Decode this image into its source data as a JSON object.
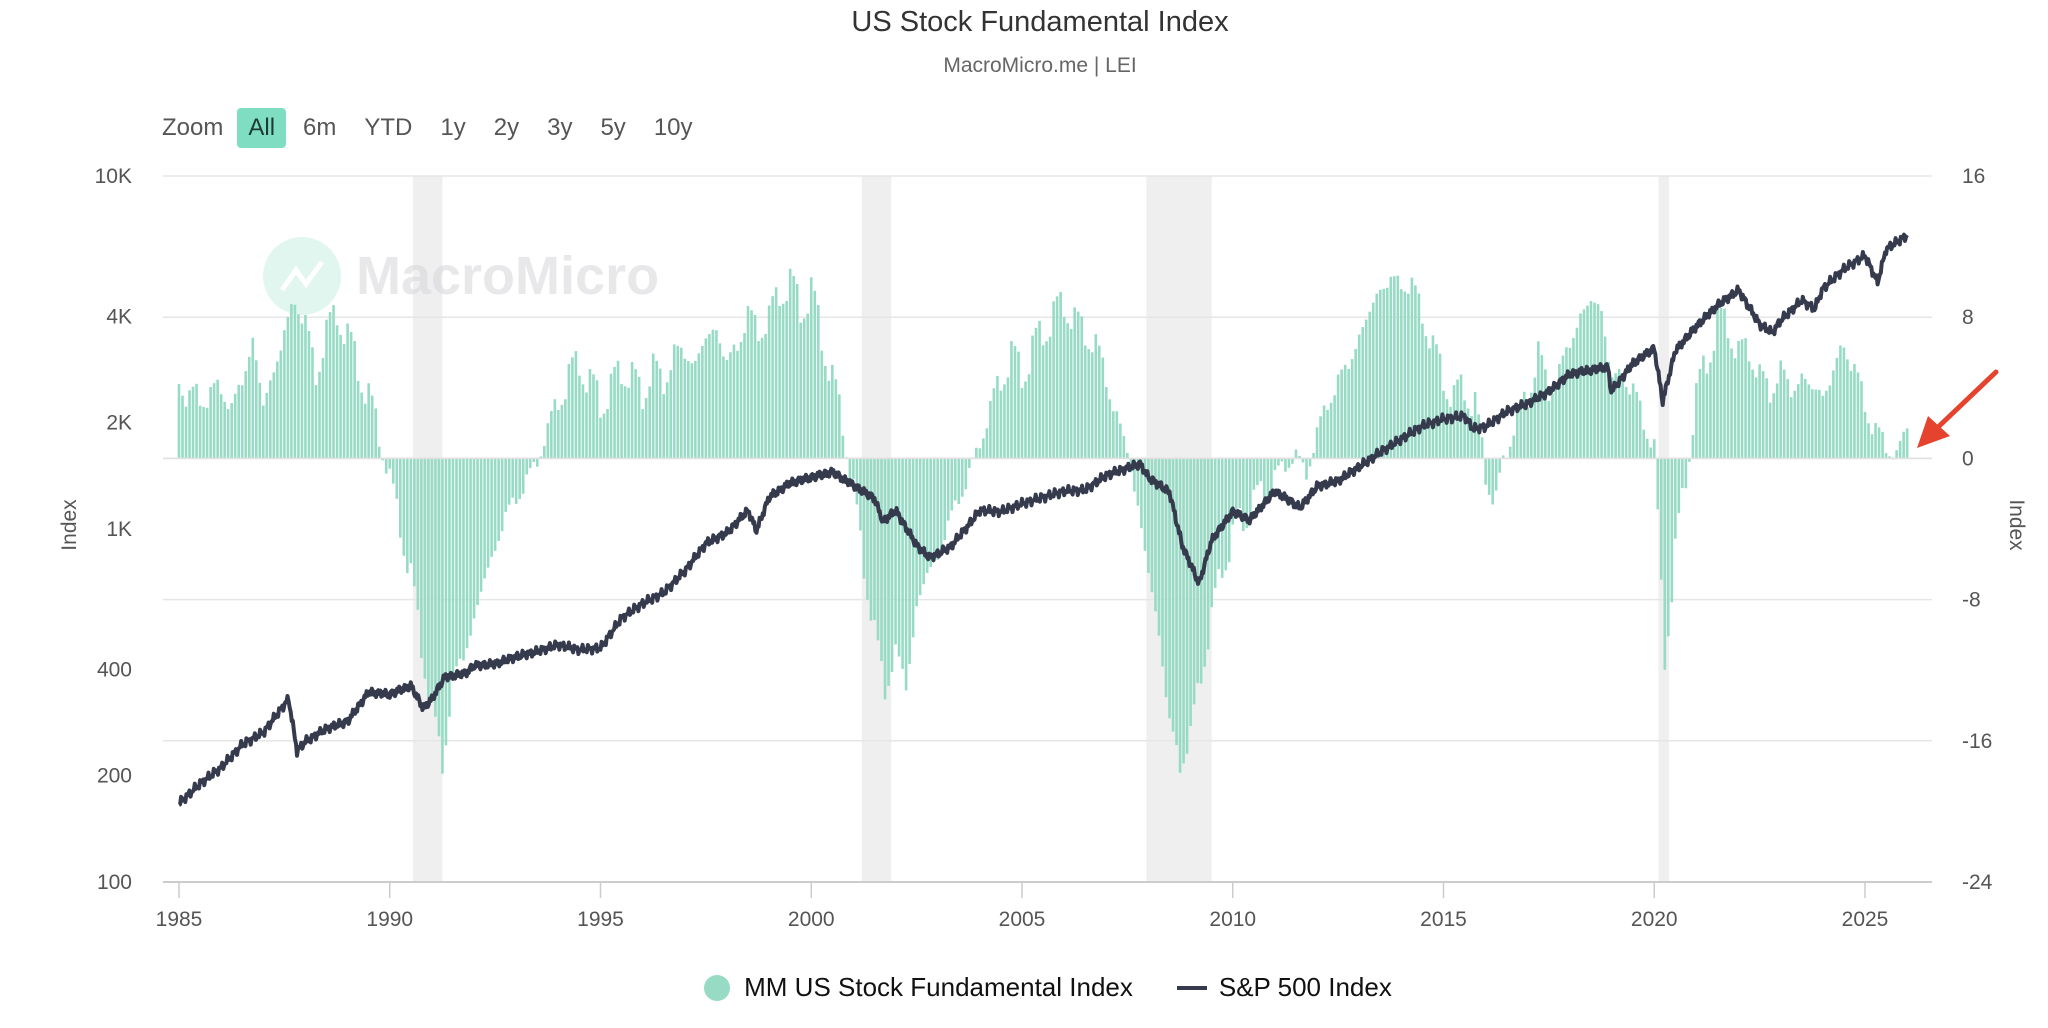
{
  "header": {
    "title": "US Stock Fundamental Index",
    "subtitle": "MacroMicro.me | LEI"
  },
  "zoom": {
    "label": "Zoom",
    "buttons": [
      "All",
      "6m",
      "YTD",
      "1y",
      "2y",
      "3y",
      "5y",
      "10y"
    ],
    "active": "All"
  },
  "watermark": "MacroMicro",
  "legend": {
    "items": [
      {
        "label": "MM US Stock Fundamental Index",
        "color": "#97dbc5",
        "symbol": "circle"
      },
      {
        "label": "S&P 500 Index",
        "color": "#353a4d",
        "symbol": "line"
      }
    ]
  },
  "colors": {
    "bars": "#97dbc5",
    "line": "#353a4d",
    "recession": "#efefef",
    "annotation_arrow": "#e5432d"
  },
  "chart_data": {
    "type": "bar+line",
    "title": "US Stock Fundamental Index",
    "subtitle": "MacroMicro.me | LEI",
    "x": {
      "label": "",
      "ticks": [
        "1985",
        "1990",
        "1995",
        "2000",
        "2005",
        "2010",
        "2015",
        "2020",
        "2025"
      ],
      "range": [
        1985,
        2026.5
      ]
    },
    "y_left": {
      "label": "Index",
      "scale": "log",
      "ticks": [
        "100",
        "200",
        "400",
        "1K",
        "2K",
        "4K",
        "10K"
      ],
      "tick_values": [
        100,
        200,
        400,
        1000,
        2000,
        4000,
        10000
      ],
      "range": [
        100,
        10000
      ]
    },
    "y_right": {
      "label": "Index",
      "scale": "linear",
      "ticks": [
        "16",
        "8",
        "0",
        "-8",
        "-16",
        "-24"
      ],
      "tick_values": [
        16,
        8,
        0,
        -8,
        -16,
        -24
      ],
      "range": [
        -24,
        16
      ]
    },
    "grid": true,
    "legend_position": "bottom-center",
    "recessions": [
      [
        1990.55,
        1991.25
      ],
      [
        2001.2,
        2001.9
      ],
      [
        2007.95,
        2009.5
      ],
      [
        2020.1,
        2020.35
      ]
    ],
    "series": [
      {
        "name": "MM US Stock Fundamental Index",
        "type": "column",
        "axis": "right",
        "points": [
          [
            1985.0,
            5.1
          ],
          [
            1985.25,
            3.0
          ],
          [
            1985.5,
            3.8
          ],
          [
            1985.75,
            3.3
          ],
          [
            1986.0,
            4.3
          ],
          [
            1986.25,
            2.6
          ],
          [
            1986.5,
            4.6
          ],
          [
            1986.75,
            6.5
          ],
          [
            1987.0,
            3.2
          ],
          [
            1987.25,
            4.8
          ],
          [
            1987.5,
            7.2
          ],
          [
            1987.75,
            8.9
          ],
          [
            1988.0,
            7.8
          ],
          [
            1988.25,
            4.6
          ],
          [
            1988.5,
            7.3
          ],
          [
            1988.75,
            8.2
          ],
          [
            1989.0,
            6.9
          ],
          [
            1989.25,
            5.2
          ],
          [
            1989.5,
            3.4
          ],
          [
            1989.75,
            1.2
          ],
          [
            1990.0,
            -1.1
          ],
          [
            1990.25,
            -3.6
          ],
          [
            1990.5,
            -6.8
          ],
          [
            1990.75,
            -10.5
          ],
          [
            1991.0,
            -14.3
          ],
          [
            1991.25,
            -17.2
          ],
          [
            1991.5,
            -12.8
          ],
          [
            1991.75,
            -11.0
          ],
          [
            1992.0,
            -9.4
          ],
          [
            1992.25,
            -6.6
          ],
          [
            1992.5,
            -5.3
          ],
          [
            1992.75,
            -3.1
          ],
          [
            1993.0,
            -2.4
          ],
          [
            1993.25,
            -1.1
          ],
          [
            1993.5,
            -0.3
          ],
          [
            1993.75,
            1.6
          ],
          [
            1994.0,
            3.4
          ],
          [
            1994.25,
            4.6
          ],
          [
            1994.5,
            5.5
          ],
          [
            1994.75,
            4.2
          ],
          [
            1995.0,
            3.2
          ],
          [
            1995.25,
            3.9
          ],
          [
            1995.5,
            5.1
          ],
          [
            1995.75,
            4.6
          ],
          [
            1996.0,
            3.6
          ],
          [
            1996.25,
            5.2
          ],
          [
            1996.5,
            4.3
          ],
          [
            1996.75,
            5.9
          ],
          [
            1997.0,
            6.1
          ],
          [
            1997.25,
            5.2
          ],
          [
            1997.5,
            7.0
          ],
          [
            1997.75,
            7.2
          ],
          [
            1998.0,
            5.5
          ],
          [
            1998.25,
            6.3
          ],
          [
            1998.5,
            8.3
          ],
          [
            1998.75,
            7.1
          ],
          [
            1999.0,
            8.1
          ],
          [
            1999.25,
            9.3
          ],
          [
            1999.5,
            10.0
          ],
          [
            1999.75,
            8.5
          ],
          [
            2000.0,
            9.4
          ],
          [
            2000.25,
            7.0
          ],
          [
            2000.5,
            4.4
          ],
          [
            2000.75,
            2.0
          ],
          [
            2001.0,
            -1.8
          ],
          [
            2001.25,
            -6.0
          ],
          [
            2001.5,
            -9.9
          ],
          [
            2001.75,
            -13.0
          ],
          [
            2002.0,
            -11.1
          ],
          [
            2002.25,
            -12.7
          ],
          [
            2002.5,
            -8.7
          ],
          [
            2002.75,
            -6.3
          ],
          [
            2003.0,
            -5.8
          ],
          [
            2003.25,
            -3.6
          ],
          [
            2003.5,
            -2.4
          ],
          [
            2003.75,
            -0.7
          ],
          [
            2004.0,
            0.8
          ],
          [
            2004.25,
            2.7
          ],
          [
            2004.5,
            4.5
          ],
          [
            2004.75,
            5.9
          ],
          [
            2005.0,
            4.8
          ],
          [
            2005.25,
            6.1
          ],
          [
            2005.5,
            7.3
          ],
          [
            2005.75,
            8.0
          ],
          [
            2006.0,
            8.9
          ],
          [
            2006.25,
            7.7
          ],
          [
            2006.5,
            7.2
          ],
          [
            2006.75,
            6.3
          ],
          [
            2007.0,
            4.7
          ],
          [
            2007.25,
            2.2
          ],
          [
            2007.5,
            0.5
          ],
          [
            2007.75,
            -3.0
          ],
          [
            2008.0,
            -6.3
          ],
          [
            2008.25,
            -10.1
          ],
          [
            2008.5,
            -14.8
          ],
          [
            2008.75,
            -17.6
          ],
          [
            2009.0,
            -15.5
          ],
          [
            2009.25,
            -12.3
          ],
          [
            2009.5,
            -9.0
          ],
          [
            2009.75,
            -6.1
          ],
          [
            2010.0,
            -4.5
          ],
          [
            2010.25,
            -3.3
          ],
          [
            2010.5,
            -2.6
          ],
          [
            2010.75,
            -1.9
          ],
          [
            2011.0,
            -1.2
          ],
          [
            2011.25,
            -0.4
          ],
          [
            2011.5,
            0.2
          ],
          [
            2011.75,
            -0.8
          ],
          [
            2012.0,
            1.3
          ],
          [
            2012.25,
            3.4
          ],
          [
            2012.5,
            4.2
          ],
          [
            2012.75,
            5.5
          ],
          [
            2013.0,
            6.7
          ],
          [
            2013.25,
            8.5
          ],
          [
            2013.5,
            9.5
          ],
          [
            2013.75,
            10.2
          ],
          [
            2014.0,
            9.8
          ],
          [
            2014.25,
            9.9
          ],
          [
            2014.5,
            8.1
          ],
          [
            2014.75,
            6.4
          ],
          [
            2015.0,
            4.5
          ],
          [
            2015.25,
            3.4
          ],
          [
            2015.5,
            4.1
          ],
          [
            2015.75,
            2.9
          ],
          [
            2016.0,
            -1.0
          ],
          [
            2016.25,
            -2.7
          ],
          [
            2016.5,
            0.4
          ],
          [
            2016.75,
            2.2
          ],
          [
            2017.0,
            3.7
          ],
          [
            2017.25,
            5.9
          ],
          [
            2017.5,
            3.9
          ],
          [
            2017.75,
            4.8
          ],
          [
            2018.0,
            6.7
          ],
          [
            2018.25,
            7.9
          ],
          [
            2018.5,
            9.1
          ],
          [
            2018.75,
            8.3
          ],
          [
            2019.0,
            4.5
          ],
          [
            2019.25,
            4.7
          ],
          [
            2019.5,
            3.9
          ],
          [
            2019.75,
            2.0
          ],
          [
            2020.0,
            0.8
          ],
          [
            2020.25,
            -11.3
          ],
          [
            2020.5,
            -5.3
          ],
          [
            2020.75,
            -1.2
          ],
          [
            2021.0,
            3.4
          ],
          [
            2021.25,
            5.7
          ],
          [
            2021.5,
            7.6
          ],
          [
            2021.75,
            7.7
          ],
          [
            2022.0,
            5.8
          ],
          [
            2022.25,
            6.3
          ],
          [
            2022.5,
            4.6
          ],
          [
            2022.75,
            3.8
          ],
          [
            2023.0,
            5.0
          ],
          [
            2023.25,
            3.9
          ],
          [
            2023.5,
            4.5
          ],
          [
            2023.75,
            4.1
          ],
          [
            2024.0,
            3.5
          ],
          [
            2024.25,
            4.9
          ],
          [
            2024.5,
            6.5
          ],
          [
            2024.75,
            5.0
          ],
          [
            2025.0,
            3.1
          ],
          [
            2025.25,
            1.6
          ],
          [
            2025.5,
            0.6
          ],
          [
            2025.75,
            0.2
          ],
          [
            2026.0,
            1.7
          ]
        ]
      },
      {
        "name": "S&P 500 Index",
        "type": "line",
        "axis": "left",
        "points": [
          [
            1985.0,
            167
          ],
          [
            1985.5,
            190
          ],
          [
            1986.0,
            211
          ],
          [
            1986.5,
            245
          ],
          [
            1987.0,
            265
          ],
          [
            1987.6,
            330
          ],
          [
            1987.8,
            235
          ],
          [
            1988.0,
            250
          ],
          [
            1988.5,
            272
          ],
          [
            1989.0,
            285
          ],
          [
            1989.5,
            345
          ],
          [
            1990.0,
            340
          ],
          [
            1990.5,
            360
          ],
          [
            1990.8,
            310
          ],
          [
            1991.0,
            330
          ],
          [
            1991.3,
            380
          ],
          [
            1991.8,
            390
          ],
          [
            1992.0,
            410
          ],
          [
            1992.5,
            415
          ],
          [
            1993.0,
            435
          ],
          [
            1993.5,
            450
          ],
          [
            1994.0,
            470
          ],
          [
            1994.5,
            455
          ],
          [
            1995.0,
            460
          ],
          [
            1995.5,
            560
          ],
          [
            1996.0,
            615
          ],
          [
            1996.5,
            660
          ],
          [
            1997.0,
            760
          ],
          [
            1997.5,
            910
          ],
          [
            1998.0,
            975
          ],
          [
            1998.5,
            1130
          ],
          [
            1998.7,
            990
          ],
          [
            1999.0,
            1230
          ],
          [
            1999.5,
            1350
          ],
          [
            2000.0,
            1400
          ],
          [
            2000.5,
            1450
          ],
          [
            2001.0,
            1330
          ],
          [
            2001.5,
            1220
          ],
          [
            2001.7,
            1050
          ],
          [
            2002.0,
            1130
          ],
          [
            2002.5,
            900
          ],
          [
            2002.8,
            830
          ],
          [
            2003.0,
            850
          ],
          [
            2003.3,
            890
          ],
          [
            2003.8,
            1050
          ],
          [
            2004.0,
            1130
          ],
          [
            2004.5,
            1120
          ],
          [
            2005.0,
            1180
          ],
          [
            2005.5,
            1230
          ],
          [
            2006.0,
            1280
          ],
          [
            2006.5,
            1290
          ],
          [
            2007.0,
            1420
          ],
          [
            2007.8,
            1530
          ],
          [
            2008.0,
            1400
          ],
          [
            2008.5,
            1270
          ],
          [
            2008.8,
            900
          ],
          [
            2009.2,
            700
          ],
          [
            2009.5,
            930
          ],
          [
            2010.0,
            1120
          ],
          [
            2010.4,
            1060
          ],
          [
            2011.0,
            1280
          ],
          [
            2011.6,
            1150
          ],
          [
            2012.0,
            1320
          ],
          [
            2012.5,
            1370
          ],
          [
            2013.0,
            1500
          ],
          [
            2013.5,
            1650
          ],
          [
            2014.0,
            1800
          ],
          [
            2014.5,
            1960
          ],
          [
            2015.0,
            2050
          ],
          [
            2015.5,
            2090
          ],
          [
            2015.7,
            1920
          ],
          [
            2016.0,
            1950
          ],
          [
            2016.5,
            2150
          ],
          [
            2017.0,
            2270
          ],
          [
            2017.5,
            2450
          ],
          [
            2018.0,
            2750
          ],
          [
            2018.9,
            2880
          ],
          [
            2018.98,
            2450
          ],
          [
            2019.5,
            2950
          ],
          [
            2020.0,
            3250
          ],
          [
            2020.2,
            2300
          ],
          [
            2020.5,
            3200
          ],
          [
            2021.0,
            3750
          ],
          [
            2021.5,
            4300
          ],
          [
            2022.0,
            4750
          ],
          [
            2022.5,
            3800
          ],
          [
            2022.8,
            3600
          ],
          [
            2023.0,
            3900
          ],
          [
            2023.5,
            4450
          ],
          [
            2023.8,
            4200
          ],
          [
            2024.0,
            4800
          ],
          [
            2024.5,
            5450
          ],
          [
            2025.0,
            5950
          ],
          [
            2025.3,
            5000
          ],
          [
            2025.5,
            6200
          ],
          [
            2026.0,
            6800
          ]
        ]
      }
    ],
    "annotations": [
      {
        "type": "arrow",
        "points_to": "latest bar near 0 (2026)",
        "color": "#e5432d"
      }
    ]
  }
}
